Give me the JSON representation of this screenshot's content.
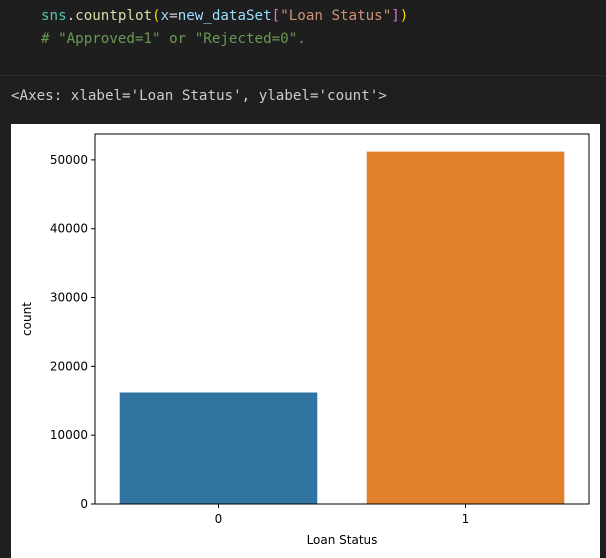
{
  "code": {
    "line1": {
      "module": "sns",
      "dot": ".",
      "func": "countplot",
      "open_paren": "(",
      "param": "x",
      "eq": "=",
      "var": "new_dataSet",
      "open_bracket": "[",
      "string": "\"Loan Status\"",
      "close_bracket": "]",
      "close_paren": ")"
    },
    "line2": "# \"Approved=1\" or \"Rejected=0\"."
  },
  "output": {
    "repr": "<Axes: xlabel='Loan Status', ylabel='count'>"
  },
  "chart_data": {
    "type": "bar",
    "categories": [
      "0",
      "1"
    ],
    "values": [
      16200,
      51200
    ],
    "colors": [
      "#3274a1",
      "#e1812c"
    ],
    "xlabel": "Loan Status",
    "ylabel": "count",
    "ylim": [
      0,
      53760
    ],
    "yticks": [
      0,
      10000,
      20000,
      30000,
      40000,
      50000
    ],
    "grid": false,
    "legend": "none"
  }
}
